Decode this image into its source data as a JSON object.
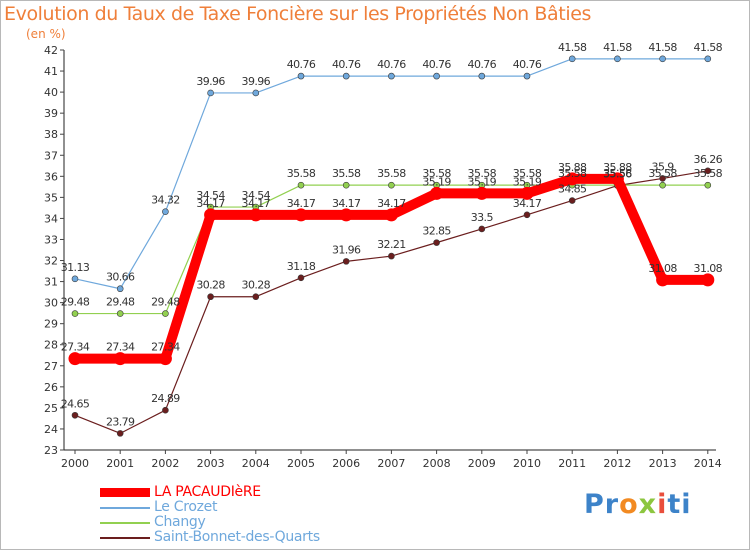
{
  "chart_data": {
    "type": "line",
    "title": "Evolution du Taux de Taxe Foncière sur les Propriétés Non Bâties",
    "ylabel": "(en %)",
    "xlabel": "",
    "ylim": [
      23,
      42
    ],
    "yticks": [
      23,
      24,
      25,
      26,
      27,
      28,
      29,
      30,
      31,
      32,
      33,
      34,
      35,
      36,
      37,
      38,
      39,
      40,
      41,
      42
    ],
    "x": [
      "2000",
      "2001",
      "2002",
      "2003",
      "2004",
      "2005",
      "2006",
      "2007",
      "2008",
      "2009",
      "2010",
      "2011",
      "2012",
      "2013",
      "2014"
    ],
    "grid": false,
    "series": [
      {
        "name": "LA PACAUDIèRE",
        "color": "#ff0000",
        "values": [
          27.34,
          27.34,
          27.34,
          34.17,
          34.17,
          34.17,
          34.17,
          34.17,
          35.19,
          35.19,
          35.19,
          35.88,
          35.88,
          31.08,
          31.08
        ]
      },
      {
        "name": "Le Crozet",
        "color": "#6fa8dc",
        "values": [
          31.13,
          30.66,
          34.32,
          39.96,
          39.96,
          40.76,
          40.76,
          40.76,
          40.76,
          40.76,
          40.76,
          41.58,
          41.58,
          41.58,
          41.58
        ]
      },
      {
        "name": "Changy",
        "color": "#92d050",
        "values": [
          29.48,
          29.48,
          29.48,
          34.54,
          34.54,
          35.58,
          35.58,
          35.58,
          35.58,
          35.58,
          35.58,
          35.58,
          35.58,
          35.58,
          35.58
        ]
      },
      {
        "name": "Saint-Bonnet-des-Quarts",
        "color": "#6b1e1e",
        "values": [
          24.65,
          23.79,
          24.89,
          30.28,
          30.28,
          31.18,
          31.96,
          32.21,
          32.85,
          33.5,
          34.17,
          34.85,
          35.56,
          35.9,
          36.26
        ]
      }
    ]
  },
  "legend": {
    "items": [
      {
        "label": "LA PACAUDIèRE",
        "color": "#ff0000"
      },
      {
        "label": "Le Crozet",
        "color": "#6fa8dc"
      },
      {
        "label": "Changy",
        "color": "#92d050"
      },
      {
        "label": "Saint-Bonnet-des-Quarts",
        "color": "#6b1e1e"
      }
    ]
  },
  "logo": {
    "p1": "Pr",
    "p2": "o",
    "p3": "x",
    "p4": "i",
    "p5": "ti"
  }
}
